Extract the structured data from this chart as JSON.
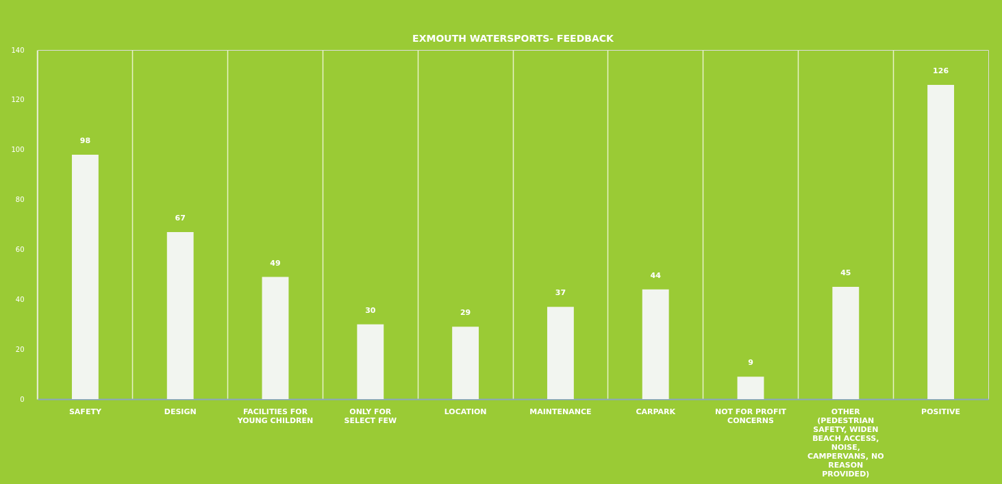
{
  "chart_data": {
    "type": "bar",
    "title": "EXMOUTH WATERSPORTS- FEEDBACK",
    "categories": [
      "SAFETY",
      "DESIGN",
      "FACILITIES FOR YOUNG CHILDREN",
      "ONLY FOR SELECT FEW",
      "LOCATION",
      "MAINTENANCE",
      "CARPARK",
      "NOT FOR PROFIT CONCERNS",
      "OTHER (PEDESTRIAN SAFETY, WIDEN BEACH ACCESS, NOISE, CAMPERVANS, NO REASON PROVIDED)",
      "POSITIVE"
    ],
    "values": [
      98,
      67,
      49,
      30,
      29,
      37,
      44,
      9,
      45,
      126
    ],
    "color": "#f2f5f0",
    "ylim": [
      0,
      140
    ],
    "yticks": [
      0,
      20,
      40,
      60,
      80,
      100,
      120,
      140
    ],
    "grid": "x",
    "data_labels": true
  }
}
